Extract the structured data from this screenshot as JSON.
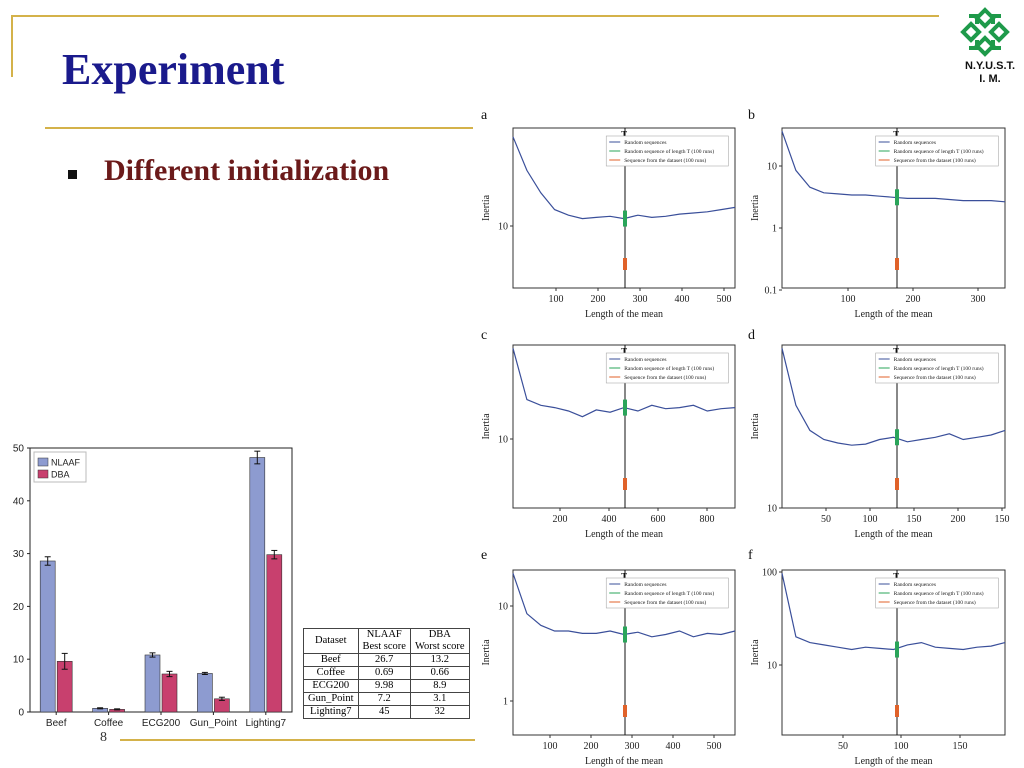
{
  "slide": {
    "title": "Experiment",
    "bullet": "Different initialization",
    "logo_text_1": "N.Y.U.S.T.",
    "logo_text_2": "I. M.",
    "page_number": "8",
    "colors": {
      "title": "#1a1a8c",
      "bullet": "#6b1a1a",
      "decor_line": "#d4b24a",
      "logo": "#1e9a4a"
    }
  },
  "bar_chart": {
    "type": "bar",
    "categories": [
      "Beef",
      "Coffee",
      "ECG200",
      "Gun_Point",
      "Lighting7"
    ],
    "series": [
      {
        "name": "NLAAF",
        "color": "#8d9bd0",
        "values": [
          28.6,
          0.7,
          10.8,
          7.3,
          48.2
        ],
        "errors": [
          0.8,
          0.1,
          0.4,
          0.2,
          1.2
        ]
      },
      {
        "name": "DBA",
        "color": "#c8406e",
        "values": [
          9.6,
          0.5,
          7.2,
          2.5,
          29.8
        ],
        "errors": [
          1.5,
          0.1,
          0.5,
          0.3,
          0.8
        ]
      }
    ],
    "yticks": [
      "0",
      "10",
      "20",
      "30",
      "40",
      "50"
    ],
    "ylim": [
      0,
      50
    ],
    "legend_position": "top-left"
  },
  "table": {
    "headers": [
      [
        "Dataset",
        ""
      ],
      [
        "NLAAF",
        "Best score"
      ],
      [
        "DBA",
        "Worst score"
      ]
    ],
    "rows": [
      [
        "Beef",
        "26.7",
        "13.2"
      ],
      [
        "Coffee",
        "0.69",
        "0.66"
      ],
      [
        "ECG200",
        "9.98",
        "8.9"
      ],
      [
        "Gun_Point",
        "7.2",
        "3.1"
      ],
      [
        "Lighting7",
        "45",
        "32"
      ]
    ]
  },
  "inertia_panels": {
    "xlabel": "Length of the mean",
    "ylabel": "Inertia",
    "marker_label": "T",
    "legend": [
      "Random sequences",
      "Random sequence of length T (100 runs)",
      "Sequence from the dataset (100 runs)"
    ],
    "panels": [
      {
        "letter": "a",
        "xticks": [
          "100",
          "200",
          "300",
          "400",
          "500"
        ],
        "yticks": [
          "10"
        ]
      },
      {
        "letter": "b",
        "xticks": [
          "100",
          "200",
          "300"
        ],
        "yticks": [
          "10",
          "1",
          "0.1"
        ]
      },
      {
        "letter": "c",
        "xticks": [
          "200",
          "400",
          "600",
          "800"
        ],
        "yticks": [
          "10"
        ]
      },
      {
        "letter": "d",
        "xticks": [
          "50",
          "100",
          "150",
          "200",
          "150"
        ],
        "yticks": [
          "10"
        ]
      },
      {
        "letter": "e",
        "xticks": [
          "100",
          "200",
          "300",
          "400",
          "500"
        ],
        "yticks": [
          "10",
          "1"
        ]
      },
      {
        "letter": "f",
        "xticks": [
          "50",
          "100",
          "150"
        ],
        "yticks": [
          "100",
          "10"
        ]
      }
    ]
  }
}
